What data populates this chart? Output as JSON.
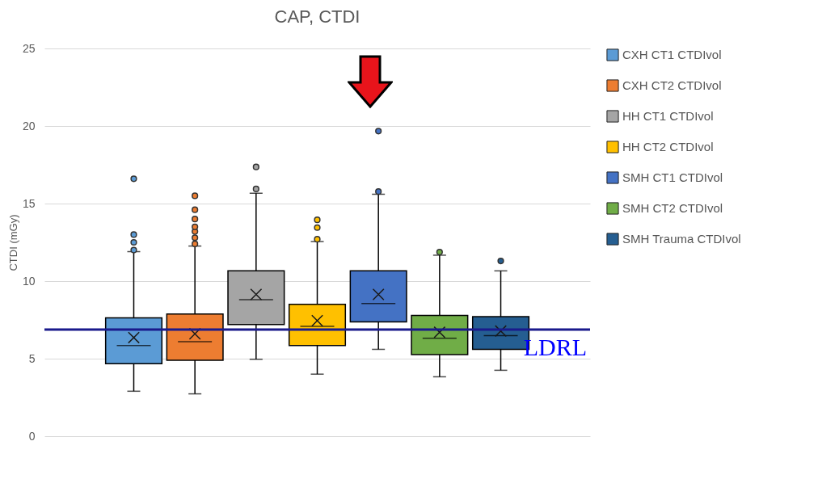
{
  "chart_data": {
    "type": "box",
    "title": "CAP, CTDI",
    "ylabel": "CTDI (mGy)",
    "categories": [
      null
    ],
    "ylim": [
      0,
      25
    ],
    "yticks": [
      0,
      5,
      10,
      15,
      20,
      25
    ],
    "grid": "y",
    "legend": "right",
    "ref_lines": [
      {
        "axis": "y",
        "value": 6.88,
        "label": "LDRL",
        "color": "#1a1a8c"
      }
    ],
    "series": [
      {
        "name": "CXH CT1 CTDIvol",
        "color": "#5b9bd5",
        "boxes": [
          {
            "low": 2.9,
            "q1": 4.67,
            "median": 5.85,
            "q3": 7.63,
            "high": 11.9,
            "mean": 6.36,
            "outliers": [
              12.0,
              12.5,
              13.0,
              16.6
            ]
          }
        ]
      },
      {
        "name": "CXH CT2 CTDIvol",
        "color": "#ed7d31",
        "boxes": [
          {
            "low": 2.73,
            "q1": 4.89,
            "median": 6.1,
            "q3": 7.88,
            "high": 12.26,
            "mean": 6.6,
            "outliers": [
              12.4,
              12.8,
              13.2,
              13.5,
              14.0,
              14.6,
              15.5
            ]
          }
        ]
      },
      {
        "name": "HH CT1 CTDIvol",
        "color": "#a5a5a5",
        "boxes": [
          {
            "low": 4.96,
            "q1": 7.2,
            "median": 8.8,
            "q3": 10.66,
            "high": 15.67,
            "mean": 9.14,
            "outliers": [
              15.94,
              17.36
            ]
          }
        ]
      },
      {
        "name": "HH CT2 CTDIvol",
        "color": "#ffc000",
        "boxes": [
          {
            "low": 4.0,
            "q1": 5.85,
            "median": 7.08,
            "q3": 8.5,
            "high": 12.55,
            "mean": 7.45,
            "outliers": [
              12.7,
              13.45,
              13.95
            ]
          }
        ]
      },
      {
        "name": "SMH CT1 CTDIvol",
        "color": "#4472c4",
        "boxes": [
          {
            "low": 5.6,
            "q1": 7.37,
            "median": 8.55,
            "q3": 10.66,
            "high": 15.6,
            "mean": 9.14,
            "outliers": [
              15.77,
              19.67
            ]
          }
        ]
      },
      {
        "name": "SMH CT2 CTDIvol",
        "color": "#70ad47",
        "boxes": [
          {
            "low": 3.83,
            "q1": 5.26,
            "median": 6.31,
            "q3": 7.79,
            "high": 11.67,
            "mean": 6.7,
            "outliers": [
              11.87
            ]
          }
        ]
      },
      {
        "name": "SMH Trauma CTDIvol",
        "color": "#255e91",
        "boxes": [
          {
            "low": 4.25,
            "q1": 5.6,
            "median": 6.48,
            "q3": 7.71,
            "high": 10.66,
            "mean": 6.78,
            "outliers": [
              11.3
            ]
          }
        ]
      }
    ]
  }
}
